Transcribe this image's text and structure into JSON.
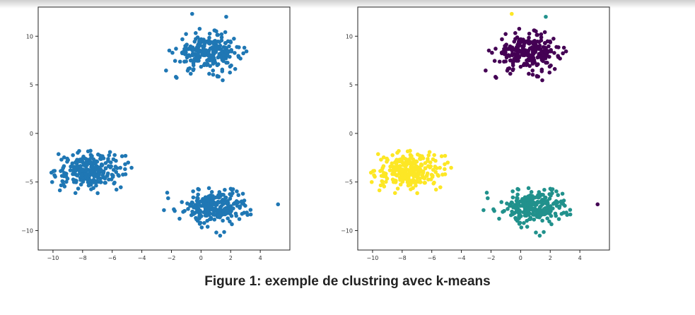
{
  "caption": "Figure 1: exemple de clustring avec k-means",
  "chart_data": [
    {
      "type": "scatter",
      "title": "",
      "xlabel": "",
      "ylabel": "",
      "xlim": [
        -11,
        6
      ],
      "ylim": [
        -12,
        13
      ],
      "xticks": [
        -10,
        -8,
        -6,
        -4,
        -2,
        0,
        2,
        4
      ],
      "yticks": [
        -10,
        -5,
        0,
        5,
        10
      ],
      "grid": false,
      "clusters": [
        {
          "center": [
            0.5,
            8.3
          ],
          "spread": [
            1.1,
            0.9
          ],
          "color": "#1f77b4"
        },
        {
          "center": [
            -7.5,
            -3.8
          ],
          "spread": [
            1.1,
            0.9
          ],
          "color": "#1f77b4"
        },
        {
          "center": [
            1.0,
            -7.5
          ],
          "spread": [
            1.1,
            0.9
          ],
          "color": "#1f77b4"
        }
      ],
      "outliers": [
        [
          5.2,
          -7.3
        ],
        [
          -0.6,
          12.3
        ],
        [
          1.7,
          12.0
        ]
      ]
    },
    {
      "type": "scatter",
      "title": "",
      "xlabel": "",
      "ylabel": "",
      "xlim": [
        -11,
        6
      ],
      "ylim": [
        -12,
        13
      ],
      "xticks": [
        -10,
        -8,
        -6,
        -4,
        -2,
        0,
        2,
        4
      ],
      "yticks": [
        -10,
        -5,
        0,
        5,
        10
      ],
      "grid": false,
      "clusters": [
        {
          "center": [
            0.5,
            8.3
          ],
          "spread": [
            1.1,
            0.9
          ],
          "color": "#440154"
        },
        {
          "center": [
            -7.5,
            -3.8
          ],
          "spread": [
            1.1,
            0.9
          ],
          "color": "#fde725"
        },
        {
          "center": [
            1.0,
            -7.5
          ],
          "spread": [
            1.1,
            0.9
          ],
          "color": "#21918c"
        }
      ],
      "outliers": [
        [
          5.2,
          -7.3
        ],
        [
          -0.6,
          12.3
        ],
        [
          1.7,
          12.0
        ]
      ]
    }
  ]
}
